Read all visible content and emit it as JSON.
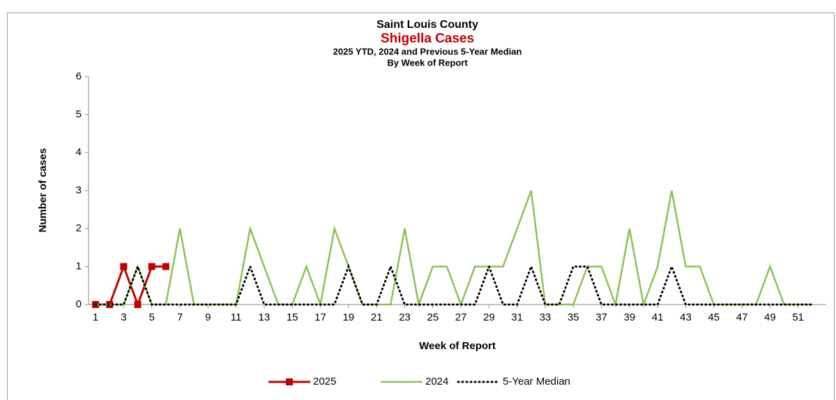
{
  "chart_data": {
    "type": "line",
    "title": "Saint Louis County",
    "subtitle": "Shigella Cases",
    "subtitle2": "2025 YTD, 2024 and Previous 5-Year Median",
    "subtitle3": "By Week of Report",
    "x_label": "Week of Report",
    "y_label": "Number of cases",
    "x": [
      1,
      2,
      3,
      4,
      5,
      6,
      7,
      8,
      9,
      10,
      11,
      12,
      13,
      14,
      15,
      16,
      17,
      18,
      19,
      20,
      21,
      22,
      23,
      24,
      25,
      26,
      27,
      28,
      29,
      30,
      31,
      32,
      33,
      34,
      35,
      36,
      37,
      38,
      39,
      40,
      41,
      42,
      43,
      44,
      45,
      46,
      47,
      48,
      49,
      50,
      51,
      52
    ],
    "xlim": [
      0.5,
      53
    ],
    "xticks": [
      1,
      3,
      5,
      7,
      9,
      11,
      13,
      15,
      17,
      19,
      21,
      23,
      25,
      27,
      29,
      31,
      33,
      35,
      37,
      39,
      41,
      43,
      45,
      47,
      49,
      51
    ],
    "ylim": [
      0,
      6
    ],
    "yticks": [
      0,
      1,
      2,
      3,
      4,
      5,
      6
    ],
    "series": [
      {
        "name": "2025",
        "color": "#c00000",
        "style": "solid-marker",
        "values": [
          0,
          0,
          1,
          0,
          1,
          1,
          null,
          null,
          null,
          null,
          null,
          null,
          null,
          null,
          null,
          null,
          null,
          null,
          null,
          null,
          null,
          null,
          null,
          null,
          null,
          null,
          null,
          null,
          null,
          null,
          null,
          null,
          null,
          null,
          null,
          null,
          null,
          null,
          null,
          null,
          null,
          null,
          null,
          null,
          null,
          null,
          null,
          null,
          null,
          null,
          null,
          null
        ]
      },
      {
        "name": "2024",
        "color": "#8cc152",
        "style": "solid",
        "values": [
          0,
          0,
          0,
          1,
          0,
          0,
          2,
          0,
          0,
          0,
          0,
          2,
          1,
          0,
          0,
          1,
          0,
          2,
          1,
          0,
          0,
          0,
          2,
          0,
          1,
          1,
          0,
          1,
          1,
          1,
          2,
          3,
          0,
          0,
          0,
          1,
          1,
          0,
          2,
          0,
          1,
          3,
          1,
          1,
          0,
          0,
          0,
          0,
          1,
          0,
          0,
          0
        ]
      },
      {
        "name": "5-Year Median",
        "color": "#000000",
        "style": "dotted",
        "values": [
          0,
          0,
          0,
          1,
          0,
          0,
          0,
          0,
          0,
          0,
          0,
          1,
          0,
          0,
          0,
          0,
          0,
          0,
          1,
          0,
          0,
          1,
          0,
          0,
          0,
          0,
          0,
          0,
          1,
          0,
          0,
          1,
          0,
          0,
          1,
          1,
          0,
          0,
          0,
          0,
          0,
          1,
          0,
          0,
          0,
          0,
          0,
          0,
          0,
          0,
          0,
          0
        ]
      }
    ],
    "legend": "bottom"
  }
}
